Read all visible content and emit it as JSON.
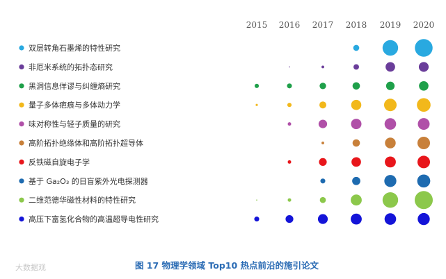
{
  "caption": "图 17  物理学领域 Top10 热点前沿的施引论文",
  "watermark": "大数据观",
  "chart_data": {
    "type": "bubble",
    "title": "图 17  物理学领域 Top10 热点前沿的施引论文",
    "x": [
      "2015",
      "2016",
      "2017",
      "2018",
      "2019",
      "2020"
    ],
    "series": [
      {
        "name": "双层转角石墨烯的特性研究",
        "color": "#29a9e0",
        "values": [
          0,
          0,
          0,
          30,
          200,
          260
        ]
      },
      {
        "name": "非厄米系统的拓扑态研究",
        "color": "#6a3d9a",
        "values": [
          0,
          1,
          6,
          25,
          75,
          80
        ]
      },
      {
        "name": "黑洞信息佯谬与纠缠熵研究",
        "color": "#1fa04a",
        "values": [
          15,
          20,
          35,
          45,
          60,
          75
        ]
      },
      {
        "name": "量子多体疤痕与多体动力学",
        "color": "#f2b81b",
        "values": [
          4,
          15,
          40,
          85,
          130,
          155
        ]
      },
      {
        "name": "味对称性与轻子质量的研究",
        "color": "#b050a8",
        "values": [
          0,
          10,
          60,
          90,
          110,
          115
        ]
      },
      {
        "name": "高阶拓扑绝缘体和高阶拓扑超导体",
        "color": "#c8803a",
        "values": [
          0,
          0,
          6,
          45,
          95,
          130
        ]
      },
      {
        "name": "反铁磁自旋电子学",
        "color": "#e8161b",
        "values": [
          0,
          10,
          50,
          75,
          100,
          130
        ]
      },
      {
        "name": "基于 Ga₂O₃ 的日盲紫外光电探测器",
        "color": "#1e6bb0",
        "values": [
          0,
          0,
          20,
          55,
          120,
          140
        ]
      },
      {
        "name": "二维范德华磁性材料的特性研究",
        "color": "#8cc84b",
        "values": [
          1,
          10,
          30,
          100,
          200,
          270
        ]
      },
      {
        "name": "高压下富氢化合物的高温超导电性研究",
        "color": "#1414d8",
        "values": [
          20,
          50,
          80,
          100,
          110,
          120
        ]
      }
    ]
  }
}
